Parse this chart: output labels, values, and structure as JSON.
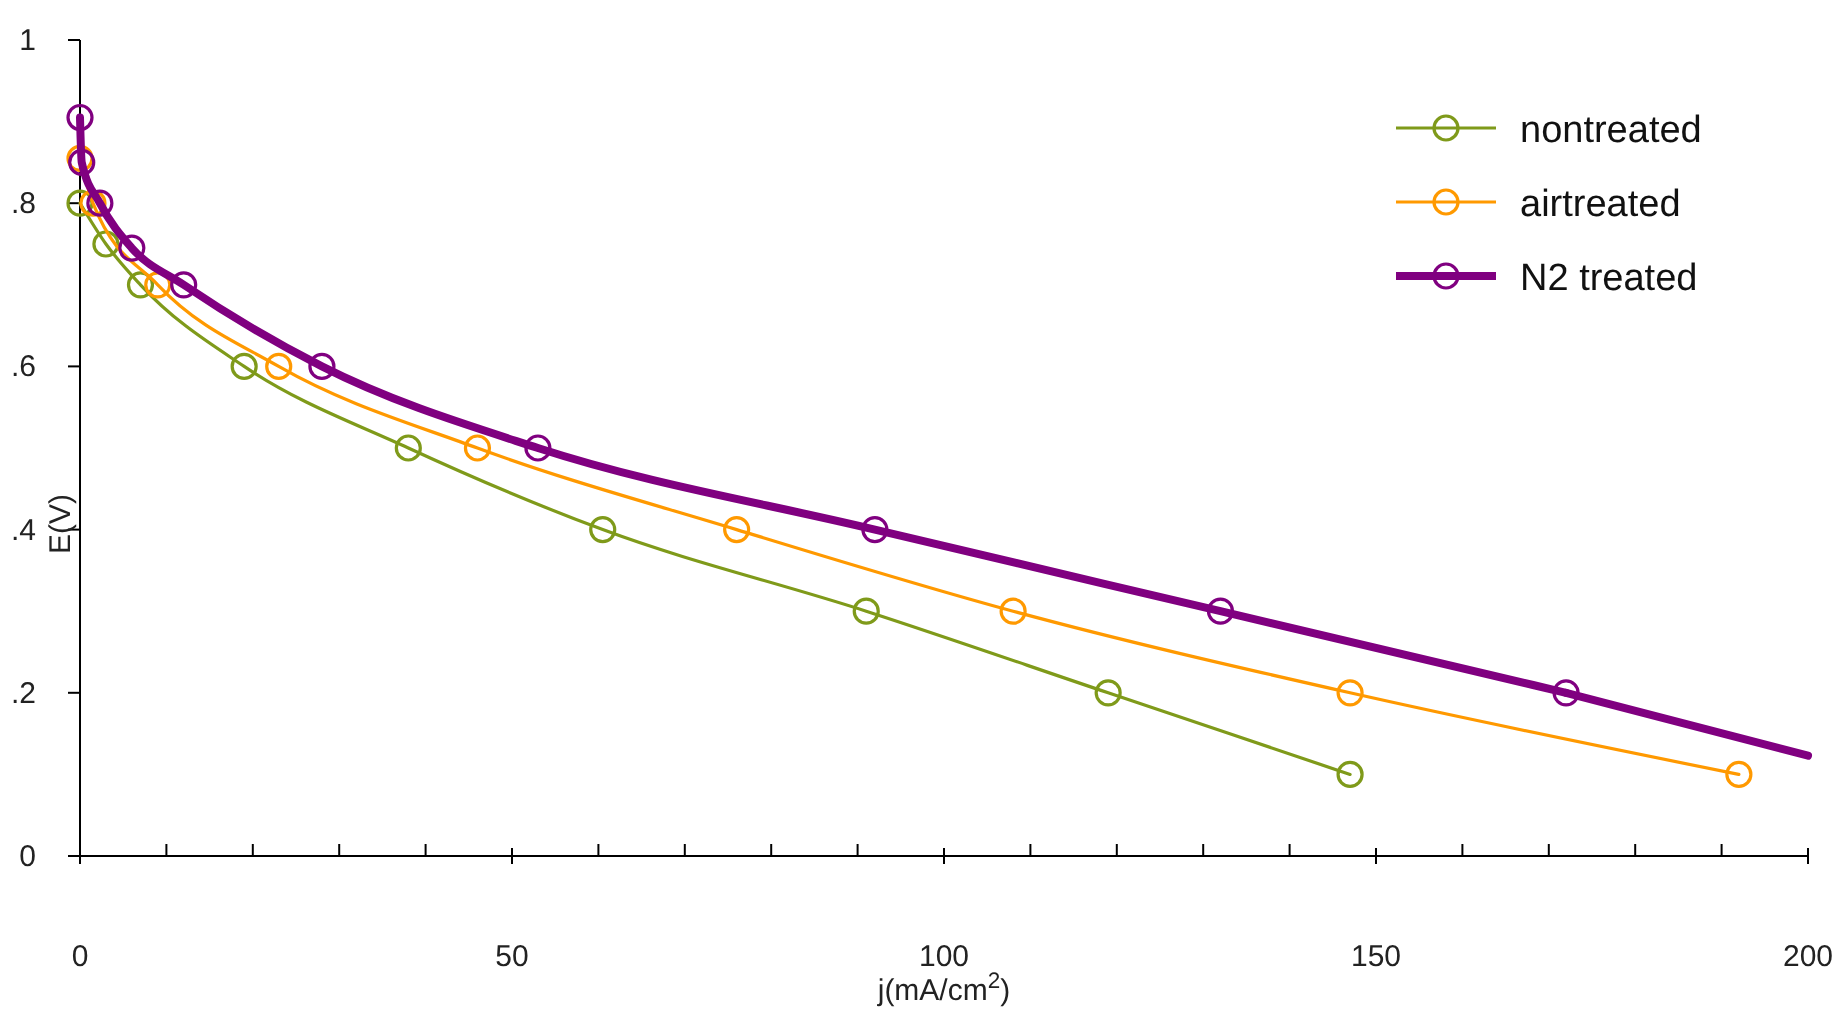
{
  "chart_data": {
    "type": "line",
    "xlabel": "j(mA/cm$^{2}$)",
    "ylabel": "E(V)",
    "xlim": [
      0,
      200
    ],
    "ylim": [
      0,
      1
    ],
    "xticks": [
      0,
      {
        "value": 10,
        "label": null
      },
      {
        "value": 20,
        "label": null
      },
      {
        "value": 30,
        "label": null
      },
      {
        "value": 40,
        "label": null
      },
      50,
      {
        "value": 60,
        "label": null
      },
      {
        "value": 70,
        "label": null
      },
      {
        "value": 80,
        "label": null
      },
      {
        "value": 90,
        "label": null
      },
      100,
      {
        "value": 110,
        "label": null
      },
      {
        "value": 120,
        "label": null
      },
      {
        "value": 130,
        "label": null
      },
      {
        "value": 140,
        "label": null
      },
      150,
      {
        "value": 160,
        "label": null
      },
      {
        "value": 170,
        "label": null
      },
      {
        "value": 180,
        "label": null
      },
      {
        "value": 190,
        "label": null
      },
      200
    ],
    "yticks": [
      0,
      {
        "value": 0.2,
        "label": ".2"
      },
      {
        "value": 0.4,
        "label": ".4"
      },
      {
        "value": 0.6,
        "label": ".6"
      },
      {
        "value": 0.8,
        "label": ".8"
      },
      1
    ],
    "marker": "circle",
    "legend": "top right",
    "grid": false,
    "series": [
      {
        "name": "nontreated",
        "color": "#7f9a1a",
        "x": [
          0,
          3,
          7,
          19,
          38,
          60.5,
          91,
          119,
          147
        ],
        "values": [
          0.8,
          0.75,
          0.7,
          0.6,
          0.5,
          0.4,
          0.3,
          0.2,
          0.1
        ]
      },
      {
        "name": "airtreated",
        "color": "#ff9900",
        "x": [
          0,
          1.5,
          9,
          23,
          46,
          76,
          108,
          147,
          192
        ],
        "values": [
          0.855,
          0.8,
          0.7,
          0.6,
          0.5,
          0.4,
          0.3,
          0.2,
          0.1
        ]
      },
      {
        "name": "N2 treated",
        "color": "#800080",
        "x": [
          0,
          0.2,
          2.3,
          6,
          12,
          28,
          53,
          92,
          132,
          172
        ],
        "values": [
          0.905,
          0.85,
          0.8,
          0.745,
          0.7,
          0.6,
          0.5,
          0.4,
          0.3,
          0.2
        ]
      },
      {
        "color": "#800080",
        "marker": "none",
        "x": [
          172,
          200
        ],
        "values": [
          0.2,
          0.123
        ]
      }
    ]
  }
}
